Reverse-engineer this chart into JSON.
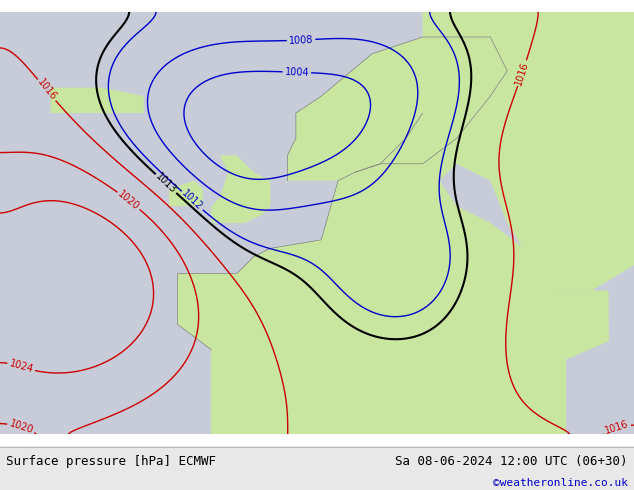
{
  "title_left": "Surface pressure [hPa] ECMWF",
  "title_right": "Sa 08-06-2024 12:00 UTC (06+30)",
  "watermark": "©weatheronline.co.uk",
  "bg_color_ocean": "#d8eaf7",
  "bg_color_land": "#c8e6a0",
  "bg_color_light": "#e8f4e8",
  "bottom_bar_color": "#e0e0e0",
  "label_color_left": "#000000",
  "label_color_right": "#000000",
  "watermark_color": "#0000cc",
  "isobar_color_blue": "#0000cc",
  "isobar_color_red": "#cc0000",
  "isobar_color_black": "#000000",
  "font_size_bottom": 9,
  "font_size_watermark": 8
}
